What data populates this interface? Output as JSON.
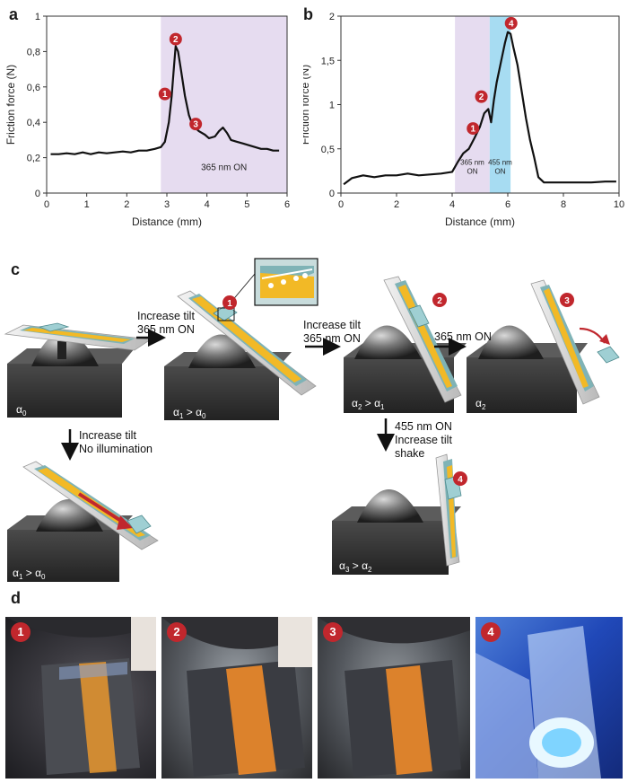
{
  "panel_labels": {
    "a": "a",
    "b": "b",
    "c": "c",
    "d": "d"
  },
  "chart_data": [
    {
      "type": "line",
      "xlabel": "Distance (mm)",
      "ylabel": "Friction force (N)",
      "xlim": [
        0,
        6
      ],
      "ylim": [
        0,
        1
      ],
      "xticks": [
        "0",
        "1",
        "2",
        "3",
        "4",
        "5",
        "6"
      ],
      "yticks": [
        "0",
        "0,2",
        "0,4",
        "0,6",
        "0,8",
        "1"
      ],
      "shaded_regions": [
        {
          "x0": 2.85,
          "x1": 6.0,
          "color": "#e6dcf0",
          "label": "365 nm ON"
        }
      ],
      "markers": [
        {
          "id": "1",
          "x": 2.95,
          "y": 0.56
        },
        {
          "id": "2",
          "x": 3.22,
          "y": 0.87
        },
        {
          "id": "3",
          "x": 3.72,
          "y": 0.39
        }
      ],
      "series": [
        {
          "x": [
            0.1,
            0.3,
            0.5,
            0.7,
            0.9,
            1.1,
            1.3,
            1.5,
            1.7,
            1.9,
            2.1,
            2.3,
            2.5,
            2.7,
            2.85,
            2.95,
            3.05,
            3.12,
            3.18,
            3.22,
            3.28,
            3.35,
            3.45,
            3.55,
            3.65,
            3.8,
            3.95,
            4.05,
            4.2,
            4.3,
            4.4,
            4.5,
            4.6,
            4.75,
            4.9,
            5.05,
            5.2,
            5.35,
            5.5,
            5.65,
            5.8
          ],
          "y": [
            0.22,
            0.22,
            0.225,
            0.22,
            0.23,
            0.22,
            0.23,
            0.225,
            0.23,
            0.235,
            0.23,
            0.24,
            0.24,
            0.25,
            0.26,
            0.29,
            0.4,
            0.55,
            0.72,
            0.83,
            0.8,
            0.7,
            0.55,
            0.44,
            0.38,
            0.35,
            0.33,
            0.31,
            0.32,
            0.35,
            0.37,
            0.34,
            0.3,
            0.29,
            0.28,
            0.27,
            0.26,
            0.25,
            0.25,
            0.24,
            0.24
          ]
        }
      ]
    },
    {
      "type": "line",
      "xlabel": "Distance (mm)",
      "ylabel": "Friction force (N)",
      "xlim": [
        0,
        10
      ],
      "ylim": [
        0,
        2
      ],
      "xticks": [
        "0",
        "2",
        "4",
        "6",
        "8",
        "10"
      ],
      "yticks": [
        "0",
        "0,5",
        "1",
        "1,5",
        "2"
      ],
      "shaded_regions": [
        {
          "x0": 4.1,
          "x1": 5.35,
          "color": "#e6dcf0",
          "label": "365 nm ON"
        },
        {
          "x0": 5.35,
          "x1": 6.1,
          "color": "#a7dcf2",
          "label": "455 nm ON"
        }
      ],
      "markers": [
        {
          "id": "1",
          "x": 4.75,
          "y": 0.73
        },
        {
          "id": "2",
          "x": 5.05,
          "y": 1.09
        },
        {
          "id": "4",
          "x": 6.12,
          "y": 1.92
        }
      ],
      "series": [
        {
          "x": [
            0.1,
            0.4,
            0.8,
            1.2,
            1.6,
            2.0,
            2.4,
            2.8,
            3.2,
            3.6,
            4.0,
            4.2,
            4.4,
            4.6,
            4.8,
            5.0,
            5.15,
            5.3,
            5.4,
            5.5,
            5.6,
            5.7,
            5.8,
            5.9,
            6.0,
            6.1,
            6.2,
            6.35,
            6.5,
            6.65,
            6.8,
            6.95,
            7.1,
            7.3,
            7.6,
            8.0,
            8.5,
            9.0,
            9.5,
            9.9
          ],
          "y": [
            0.1,
            0.17,
            0.2,
            0.18,
            0.2,
            0.2,
            0.22,
            0.2,
            0.21,
            0.22,
            0.24,
            0.35,
            0.45,
            0.5,
            0.62,
            0.75,
            0.9,
            0.95,
            0.8,
            1.05,
            1.25,
            1.4,
            1.55,
            1.7,
            1.82,
            1.8,
            1.65,
            1.45,
            1.15,
            0.85,
            0.6,
            0.4,
            0.18,
            0.12,
            0.12,
            0.12,
            0.12,
            0.12,
            0.13,
            0.13
          ]
        }
      ]
    }
  ],
  "diagram": {
    "steps": [
      {
        "angle": "α",
        "angle_sub": "0",
        "relation": ""
      },
      {
        "angle": "α",
        "angle_sub": "1",
        "relation": " > α",
        "rel_sub": "0",
        "marker": "1"
      },
      {
        "angle": "α",
        "angle_sub": "2",
        "relation": " > α",
        "rel_sub": "1",
        "marker": "2"
      },
      {
        "angle": "α",
        "angle_sub": "2",
        "relation": "",
        "marker": "3"
      }
    ],
    "alt_steps": [
      {
        "angle": "α",
        "angle_sub": "1",
        "relation": " > α",
        "rel_sub": "0"
      },
      {
        "angle": "α",
        "angle_sub": "3",
        "relation": " > α",
        "rel_sub": "2",
        "marker": "4"
      }
    ],
    "arrows": {
      "step1_line1": "Increase tilt",
      "step1_line2": "365 nm ON",
      "step2_line1": "Increase tilt",
      "step2_line2": "365 nm ON",
      "step3_line1": "365 nm ON",
      "down1_line1": "Increase tilt",
      "down1_line2": "No illumination",
      "down2_line1": "455 nm ON",
      "down2_line2": "Increase tilt",
      "down2_line3": "shake"
    }
  },
  "photos": [
    {
      "marker": "1"
    },
    {
      "marker": "2"
    },
    {
      "marker": "3"
    },
    {
      "marker": "4"
    }
  ],
  "colors": {
    "marker_red": "#c1272d",
    "film_yellow": "#f2b926",
    "slide_teal": "#7fb3b6",
    "purple_region": "#e6dcf0",
    "blue_region": "#a7dcf2",
    "arrow_red": "#c0282e"
  }
}
